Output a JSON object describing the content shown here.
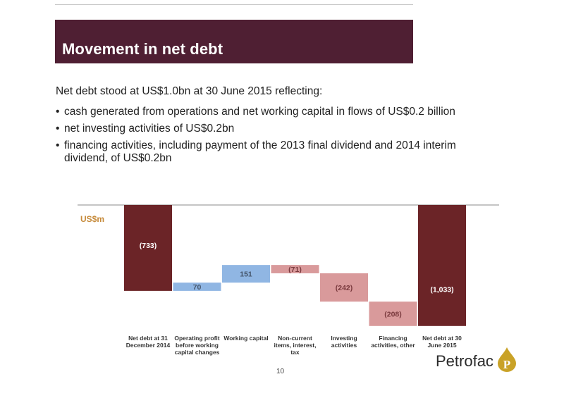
{
  "slide": {
    "title": "Movement in net debt",
    "intro": "Net debt stood at US$1.0bn at 30 June 2015 reflecting:",
    "bullets": [
      "cash generated from operations and net working capital in flows of US$0.2 billion",
      "net investing activities of US$0.2bn",
      "financing activities, including payment of the 2013 final dividend and 2014 interim dividend, of US$0.2bn"
    ],
    "page_number": "10",
    "logo_text": "Petrofac",
    "colors": {
      "title_bar": "#4f1f33",
      "total_bar": "#6b2427",
      "increase_bar": "#90b6e3",
      "decrease_bar": "#d99a9b"
    }
  },
  "chart_data": {
    "type": "waterfall",
    "unit_label": "US$m",
    "categories": [
      "Net debt at 31 December 2014",
      "Operating profit before working capital changes",
      "Working capital",
      "Non-current items, interest, tax",
      "Investing activities",
      "Financing activities, other",
      "Net debt at 30 June 2015"
    ],
    "values": [
      -733,
      70,
      151,
      -71,
      -242,
      -208,
      -1033
    ],
    "labels": [
      "(733)",
      "70",
      "151",
      "(71)",
      "(242)",
      "(208)",
      "(1,033)"
    ],
    "kinds": [
      "total",
      "increase",
      "increase",
      "decrease",
      "decrease",
      "decrease",
      "total"
    ],
    "ylim": [
      -1033,
      0
    ]
  }
}
